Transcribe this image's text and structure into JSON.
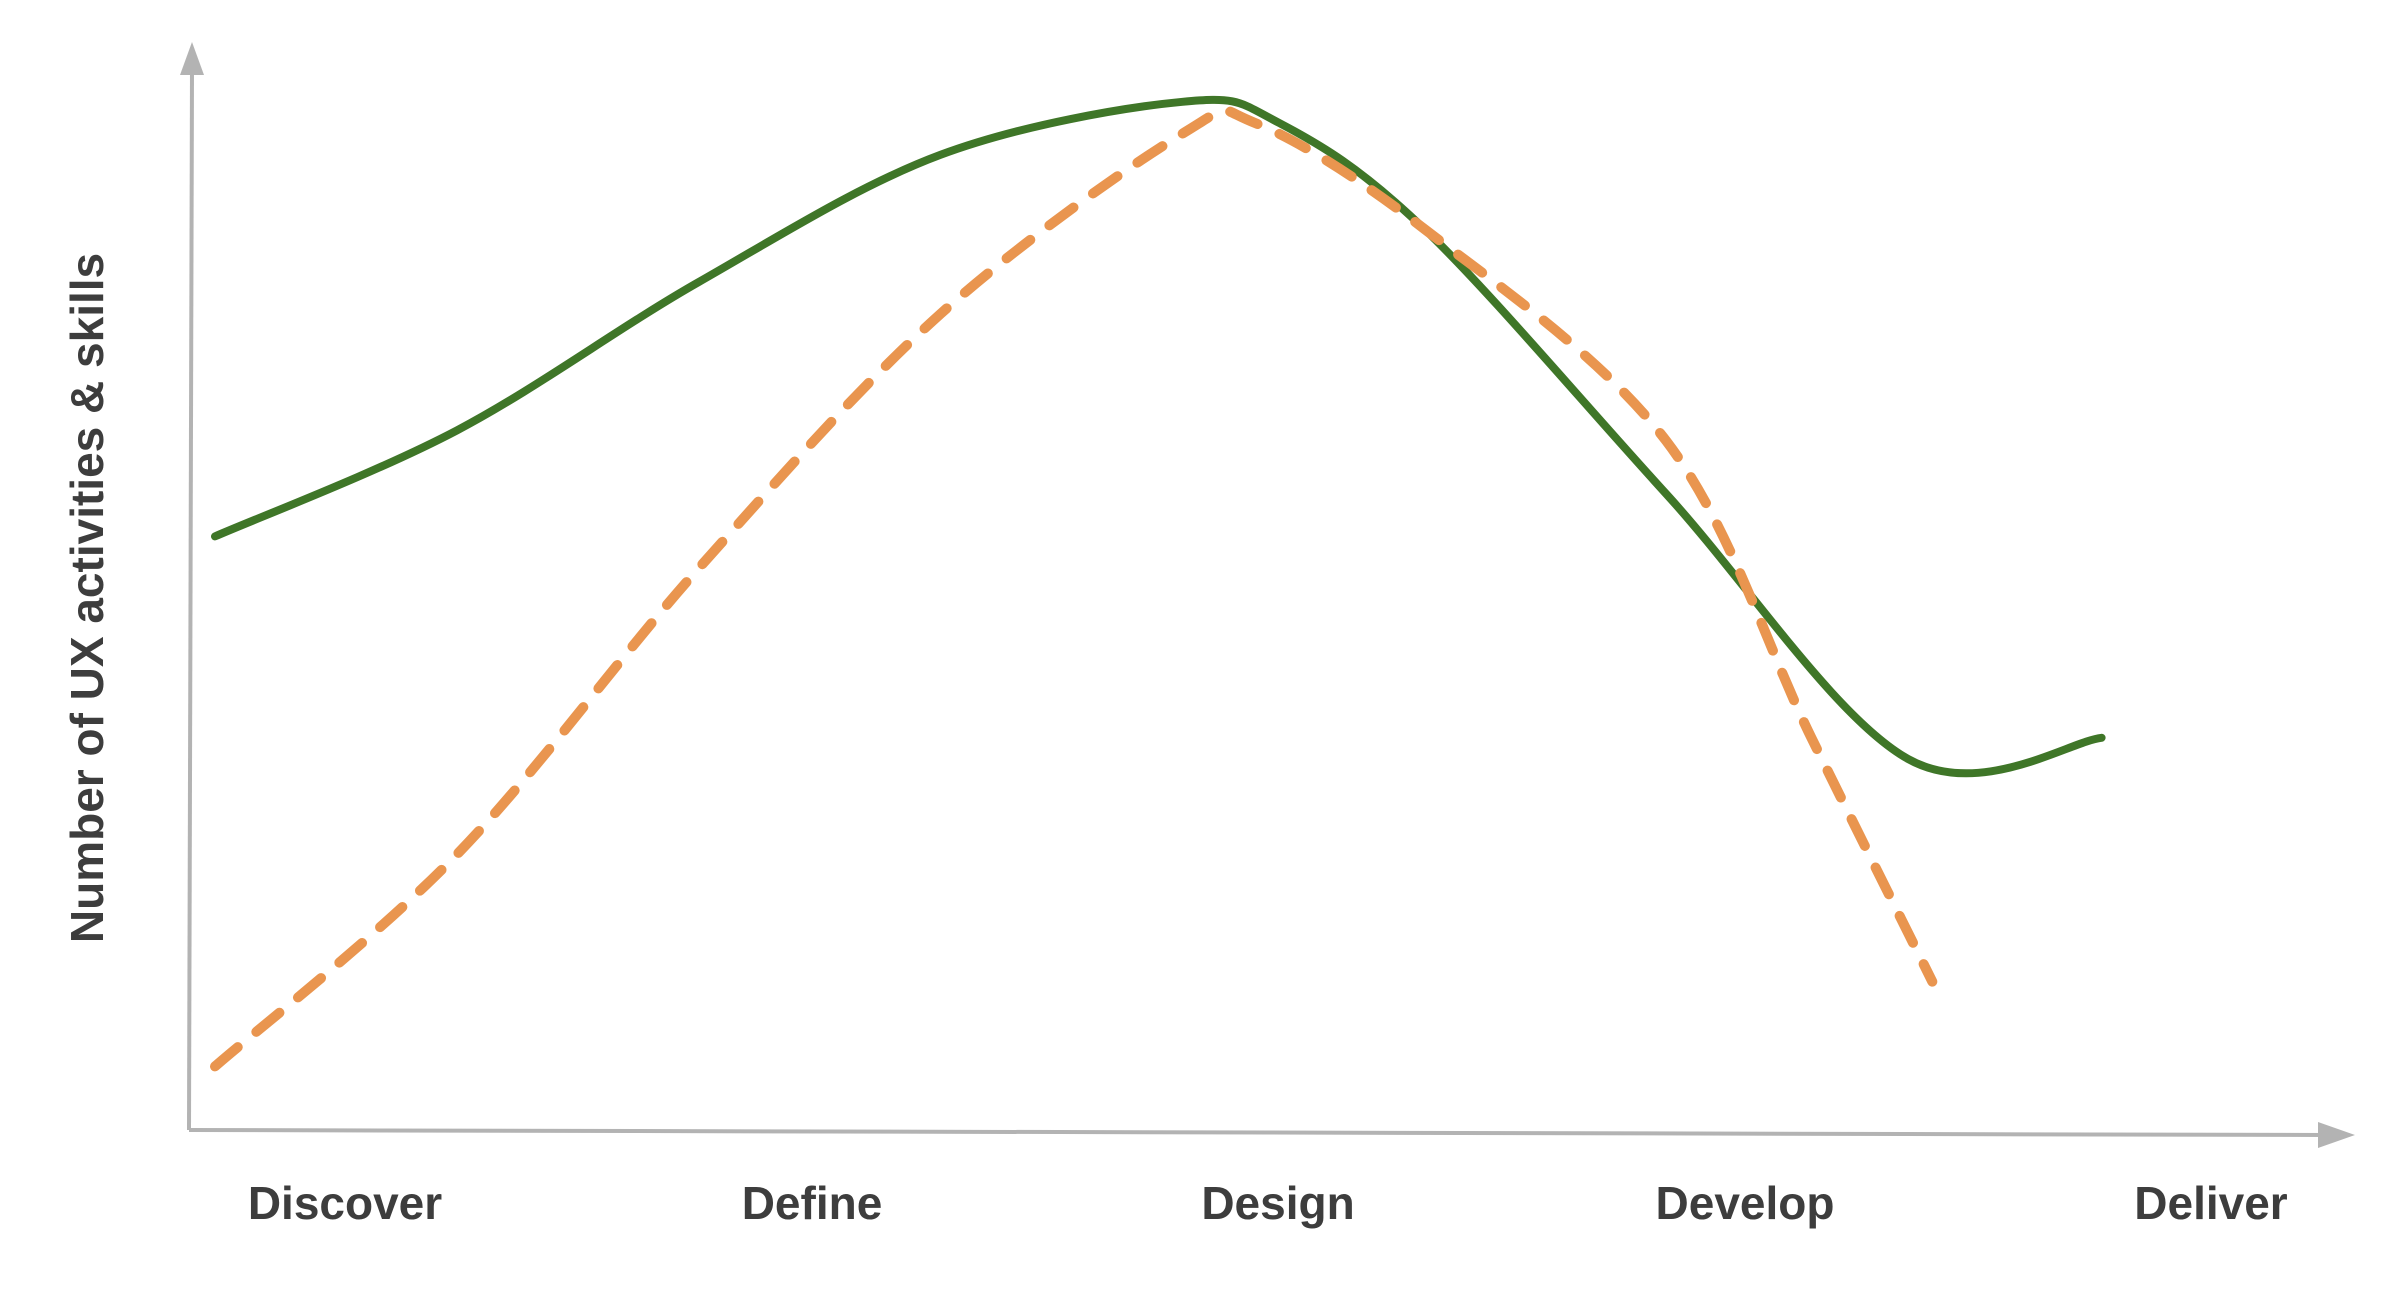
{
  "chart_data": {
    "type": "line",
    "title": "",
    "xlabel": "",
    "ylabel": "Number of UX activities & skills",
    "categories": [
      "Discover",
      "Define",
      "Design",
      "Develop",
      "Deliver"
    ],
    "ylim": [
      0,
      100
    ],
    "grid": false,
    "legend": "none",
    "series": [
      {
        "name": "",
        "style": "solid",
        "color": "#3f7628",
        "x": [
          0.0,
          0.5,
          1.0,
          1.5,
          2.0,
          2.2,
          2.5,
          3.0,
          3.5,
          3.9
        ],
        "values": [
          56,
          66,
          80,
          92,
          97,
          95,
          85,
          60,
          35,
          37
        ]
      },
      {
        "name": "",
        "style": "dashed",
        "color": "#e9954f",
        "x": [
          0.0,
          0.5,
          1.0,
          1.5,
          2.0,
          2.15,
          2.5,
          3.0,
          3.3,
          3.55
        ],
        "values": [
          6,
          26,
          53,
          77,
          94,
          95,
          85,
          65,
          37,
          14
        ]
      }
    ]
  }
}
